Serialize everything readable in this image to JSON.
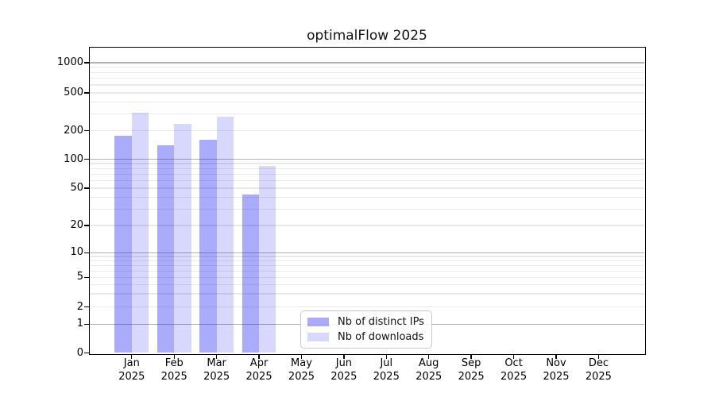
{
  "chart_data": {
    "type": "bar",
    "title": "optimalFlow 2025",
    "yscale": "symlog",
    "ylim": [
      0,
      1450
    ],
    "grid": true,
    "legend_position": "lower-center-inside",
    "xlabel": "",
    "ylabel": "",
    "categories": [
      {
        "month": "Jan",
        "year": "2025"
      },
      {
        "month": "Feb",
        "year": "2025"
      },
      {
        "month": "Mar",
        "year": "2025"
      },
      {
        "month": "Apr",
        "year": "2025"
      },
      {
        "month": "May",
        "year": "2025"
      },
      {
        "month": "Jun",
        "year": "2025"
      },
      {
        "month": "Jul",
        "year": "2025"
      },
      {
        "month": "Aug",
        "year": "2025"
      },
      {
        "month": "Sep",
        "year": "2025"
      },
      {
        "month": "Oct",
        "year": "2025"
      },
      {
        "month": "Nov",
        "year": "2025"
      },
      {
        "month": "Dec",
        "year": "2025"
      }
    ],
    "series": [
      {
        "name": "Nb of distinct IPs",
        "color": "rgba(10,10,245,0.34)",
        "values": [
          175,
          140,
          160,
          43,
          0,
          0,
          0,
          0,
          0,
          0,
          0,
          0
        ]
      },
      {
        "name": "Nb of downloads",
        "color": "rgba(10,10,245,0.16)",
        "values": [
          310,
          235,
          280,
          85,
          0,
          0,
          0,
          0,
          0,
          0,
          0,
          0
        ]
      }
    ],
    "ytick_values": [
      0,
      1,
      2,
      5,
      10,
      20,
      50,
      100,
      200,
      500,
      1000
    ],
    "ytick_labels": [
      "0",
      "1",
      "2",
      "5",
      "10",
      "20",
      "50",
      "100",
      "200",
      "500",
      "1000"
    ]
  },
  "colors": {
    "background": "#ffffff",
    "spine": "#000000",
    "grid_major": "#b0b0b0",
    "grid_minor": "#e9e9e9",
    "bar_distinct_ips": "rgba(10,10,245,0.34)",
    "bar_downloads": "rgba(10,10,245,0.16)"
  }
}
